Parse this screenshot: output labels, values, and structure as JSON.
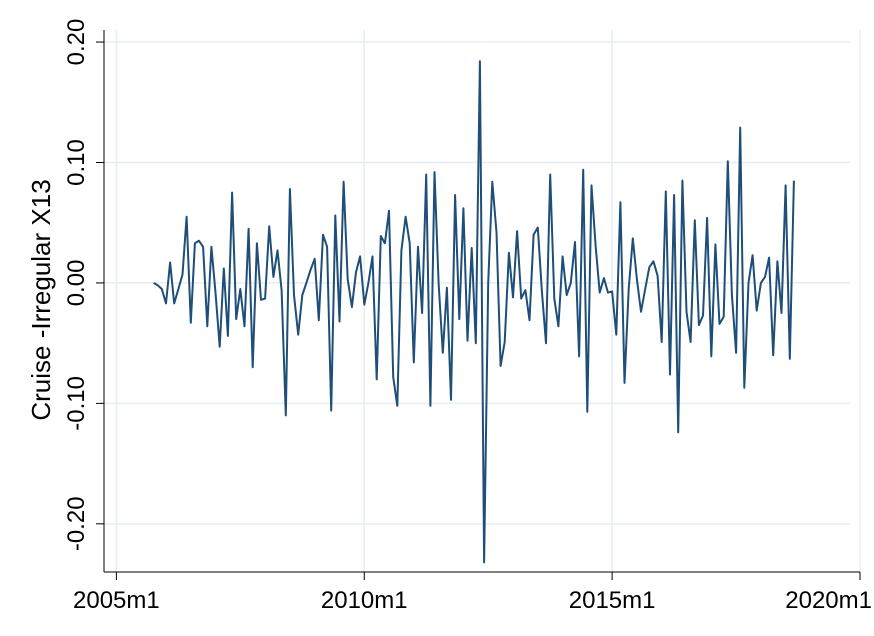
{
  "chart_data": {
    "type": "line",
    "title": "",
    "xlabel": "",
    "ylabel": "Cruise -Irregular X13",
    "xlim": [
      2004.75,
      2020.0
    ],
    "ylim": [
      -0.24,
      0.21
    ],
    "xticks": [
      {
        "value": 2005.0,
        "label": "2005m1"
      },
      {
        "value": 2010.0,
        "label": "2010m1"
      },
      {
        "value": 2015.0,
        "label": "2015m1"
      },
      {
        "value": 2020.0,
        "label": "2020m1"
      }
    ],
    "yticks": [
      {
        "value": 0.2,
        "label": "0.20"
      },
      {
        "value": 0.1,
        "label": "0.10"
      },
      {
        "value": 0.0,
        "label": "0.00"
      },
      {
        "value": -0.1,
        "label": "-0.10"
      },
      {
        "value": -0.2,
        "label": "-0.20"
      }
    ],
    "grid": true,
    "line_color": "#1f4e79",
    "start": "2005m10",
    "series": [
      {
        "values": [
          0.0,
          -0.002,
          -0.005,
          -0.017,
          0.017,
          -0.017,
          -0.005,
          0.007,
          0.055,
          -0.033,
          0.033,
          0.035,
          0.03,
          -0.036,
          0.03,
          -0.008,
          -0.053,
          0.012,
          -0.044,
          0.075,
          -0.03,
          -0.005,
          -0.036,
          0.045,
          -0.07,
          0.033,
          -0.014,
          -0.013,
          0.047,
          0.005,
          0.027,
          -0.006,
          -0.11,
          0.078,
          -0.01,
          -0.043,
          -0.01,
          0.0,
          0.011,
          0.02,
          -0.031,
          0.04,
          0.03,
          -0.106,
          0.056,
          -0.032,
          0.084,
          0.003,
          -0.02,
          0.009,
          0.022,
          -0.018,
          0.0,
          0.022,
          -0.08,
          0.039,
          0.033,
          0.06,
          -0.078,
          -0.102,
          0.027,
          0.055,
          0.033,
          -0.066,
          0.03,
          -0.025,
          0.09,
          -0.102,
          0.092,
          0.0,
          -0.058,
          -0.004,
          -0.097,
          0.073,
          -0.03,
          0.062,
          -0.048,
          0.029,
          -0.05,
          0.184,
          -0.232,
          0.0,
          0.084,
          0.042,
          -0.069,
          -0.049,
          0.025,
          -0.012,
          0.043,
          -0.013,
          -0.006,
          -0.031,
          0.04,
          0.046,
          -0.007,
          -0.05,
          0.09,
          -0.013,
          -0.036,
          0.022,
          -0.01,
          0.0,
          0.034,
          -0.061,
          0.094,
          -0.107,
          0.081,
          0.031,
          -0.008,
          0.004,
          -0.008,
          -0.007,
          -0.043,
          0.067,
          -0.083,
          -0.005,
          0.037,
          0.003,
          -0.024,
          -0.005,
          0.013,
          0.018,
          0.006,
          -0.049,
          0.076,
          -0.076,
          0.073,
          -0.124,
          0.085,
          -0.024,
          -0.049,
          0.052,
          -0.035,
          -0.027,
          0.054,
          -0.061,
          0.032,
          -0.034,
          -0.028,
          0.101,
          -0.01,
          -0.058,
          0.129,
          -0.087,
          0.0,
          0.023,
          -0.023,
          0.0,
          0.005,
          0.021,
          -0.06,
          0.018,
          -0.025,
          0.081,
          -0.063,
          0.085
        ]
      }
    ]
  }
}
